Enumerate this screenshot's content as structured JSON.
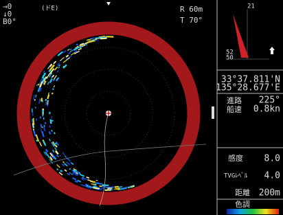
{
  "top_left": {
    "shift_x": "→0",
    "shift_y": "↓0",
    "bearing": "B0°",
    "mode": "(ドE)"
  },
  "top_right": {
    "range": "R 60m",
    "tilt": "T 70°"
  },
  "compass": {
    "north": "21",
    "label_a": "52",
    "label_b": "50"
  },
  "position": {
    "lat": "33°37.811'N",
    "lon": "135°28.677'E"
  },
  "course": {
    "label": "進路",
    "value": "225°"
  },
  "speed": {
    "label": "船速",
    "value": "0.8kn"
  },
  "gain": {
    "label": "感度",
    "value": "8.0"
  },
  "tvg": {
    "label": "TVGﾚﾍﾞﾙ",
    "value": "4.0"
  },
  "range": {
    "label": "距離",
    "value": "200m"
  },
  "color": {
    "label": "色調"
  }
}
